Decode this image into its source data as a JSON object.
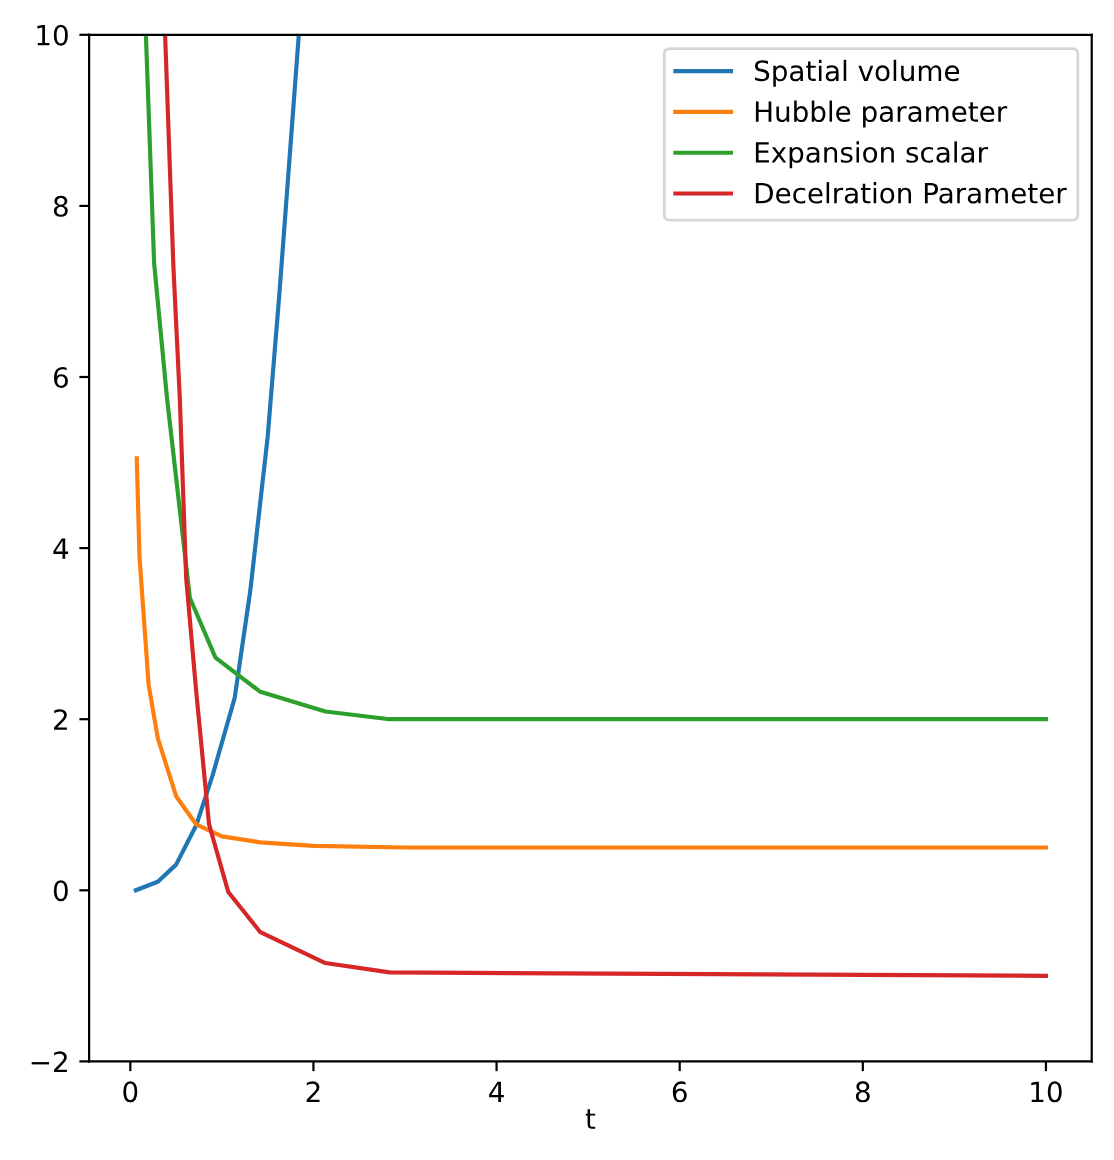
{
  "chart_data": {
    "type": "line",
    "xlabel": "t",
    "xlim": [
      -0.45,
      10.5
    ],
    "ylim": [
      -2,
      10
    ],
    "xticks": [
      0,
      2,
      4,
      6,
      8,
      10
    ],
    "yticks": [
      {
        "value": -2,
        "label": "−2"
      },
      0,
      2,
      4,
      6,
      8,
      10
    ],
    "grid": false,
    "legend": "top right",
    "series": [
      {
        "name": "Spatial volume",
        "color": "#1f77b4",
        "x": [
          0.06,
          0.3,
          0.5,
          0.72,
          0.9,
          1.14,
          1.31,
          1.5,
          1.63,
          1.84
        ],
        "values": [
          0.0,
          0.1,
          0.3,
          0.76,
          1.35,
          2.25,
          3.5,
          5.3,
          7.0,
          10
        ]
      },
      {
        "name": "Hubble parameter",
        "color": "#ff7f0e",
        "x": [
          0.07,
          0.1,
          0.2,
          0.3,
          0.5,
          0.72,
          1.0,
          1.42,
          2.0,
          3.0,
          10
        ],
        "values": [
          5.05,
          3.9,
          2.4,
          1.78,
          1.1,
          0.77,
          0.63,
          0.56,
          0.52,
          0.5,
          0.5
        ]
      },
      {
        "name": "Expansion scalar",
        "color": "#2ca02c",
        "x": [
          0.17,
          0.26,
          0.4,
          0.65,
          0.93,
          1.42,
          2.13,
          2.83,
          10
        ],
        "values": [
          10,
          7.33,
          5.76,
          3.42,
          2.72,
          2.32,
          2.09,
          2.0,
          2.0
        ]
      },
      {
        "name": "Decelration Parameter",
        "color": "#d62728",
        "x": [
          0.38,
          0.47,
          0.54,
          0.61,
          0.72,
          0.86,
          1.07,
          1.42,
          2.13,
          2.83,
          10
        ],
        "values": [
          10,
          7.3,
          5.76,
          3.65,
          2.32,
          0.77,
          -0.02,
          -0.49,
          -0.85,
          -0.96,
          -1.0
        ]
      }
    ]
  }
}
